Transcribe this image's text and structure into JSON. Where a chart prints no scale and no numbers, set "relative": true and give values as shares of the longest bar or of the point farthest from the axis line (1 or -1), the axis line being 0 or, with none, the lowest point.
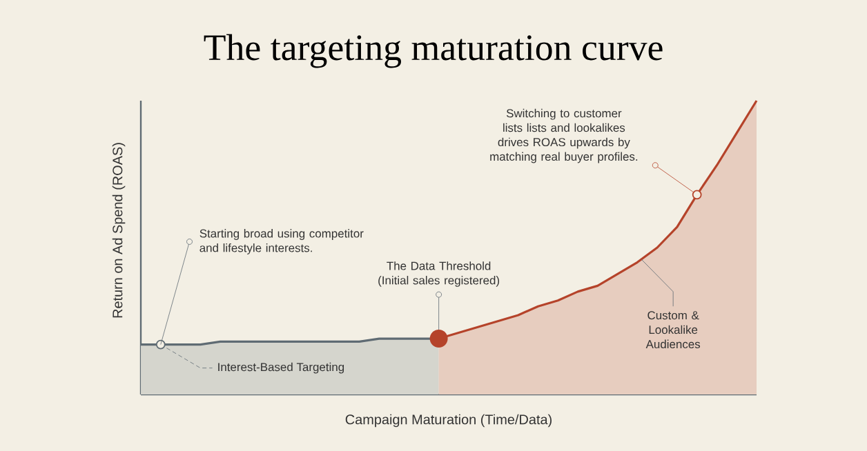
{
  "chart_data": {
    "type": "area",
    "title": "The targeting maturation curve",
    "xlabel": "Campaign Maturation (Time/Data)",
    "ylabel": "Return on Ad Spend (ROAS)",
    "relative": true,
    "categories": [
      null,
      null,
      null,
      null,
      null,
      null,
      null,
      null,
      null,
      null,
      null,
      null,
      null,
      null,
      null,
      null,
      null,
      null,
      null,
      null,
      null,
      null,
      null,
      null,
      null,
      null,
      null,
      null,
      null,
      null,
      null,
      null
    ],
    "series": [
      {
        "name": "Interest-Based Targeting",
        "color": "#5f6b73",
        "values": [
          0.17,
          0.17,
          0.17,
          0.17,
          0.18,
          0.18,
          0.18,
          0.18,
          0.18,
          0.18,
          0.18,
          0.18,
          0.19,
          0.19,
          0.19,
          0.19,
          null,
          null,
          null,
          null,
          null,
          null,
          null,
          null,
          null,
          null,
          null,
          null,
          null,
          null,
          null,
          null
        ]
      },
      {
        "name": "Custom & Lookalike Audiences",
        "color": "#b5432a",
        "values": [
          null,
          null,
          null,
          null,
          null,
          null,
          null,
          null,
          null,
          null,
          null,
          null,
          null,
          null,
          null,
          0.19,
          0.21,
          0.23,
          0.25,
          0.27,
          0.3,
          0.32,
          0.35,
          0.37,
          0.41,
          0.45,
          0.5,
          0.57,
          0.68,
          0.78,
          0.89,
          1.0
        ]
      }
    ],
    "annotations": [
      "Starting broad using competitor and lifestyle interests.",
      "The Data Threshold (Initial sales registered)",
      "Switching to customer lists lists and lookalikes drives ROAS upwards by matching real buyer profiles."
    ]
  }
}
